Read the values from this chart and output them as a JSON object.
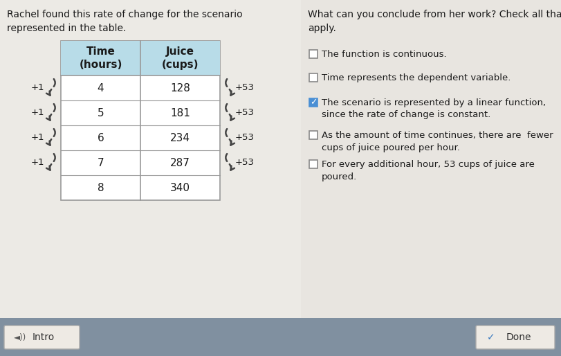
{
  "bg_color": "#dedbd6",
  "left_panel_bg": "#eceae5",
  "right_panel_bg": "#e8e5e0",
  "bottom_bar_bg": "#8090a0",
  "title_left": "Rachel found this rate of change for the scenario\nrepresented in the table.",
  "title_right": "What can you conclude from her work? Check all that\napply.",
  "table_header_bg": "#b8dce8",
  "table_border_color": "#999999",
  "table_col1_header": "Time\n(hours)",
  "table_col2_header": "Juice\n(cups)",
  "time_values": [
    "4",
    "5",
    "6",
    "7",
    "8"
  ],
  "juice_values": [
    "128",
    "181",
    "234",
    "287",
    "340"
  ],
  "left_labels": [
    "+1",
    "+1",
    "+1",
    "+1"
  ],
  "right_labels": [
    "+53",
    "+53",
    "+53",
    "+53"
  ],
  "checkboxes": [
    {
      "text": "The function is continuous.",
      "checked": false,
      "multiline": false
    },
    {
      "text": "Time represents the dependent variable.",
      "checked": false,
      "multiline": false
    },
    {
      "text": "The scenario is represented by a linear function,\nsince the rate of change is constant.",
      "checked": true,
      "multiline": true
    },
    {
      "text": "As the amount of time continues, there are  fewer\ncups of juice poured per hour.",
      "checked": false,
      "multiline": true
    },
    {
      "text": "For every additional hour, 53 cups of juice are\npoured.",
      "checked": false,
      "multiline": true
    }
  ],
  "intro_btn_text": "Intro",
  "done_btn_text": "Done",
  "check_fill_color": "#4a8fd4",
  "check_border_color": "#888888",
  "arrow_color": "#444444",
  "text_color": "#1a1a1a"
}
